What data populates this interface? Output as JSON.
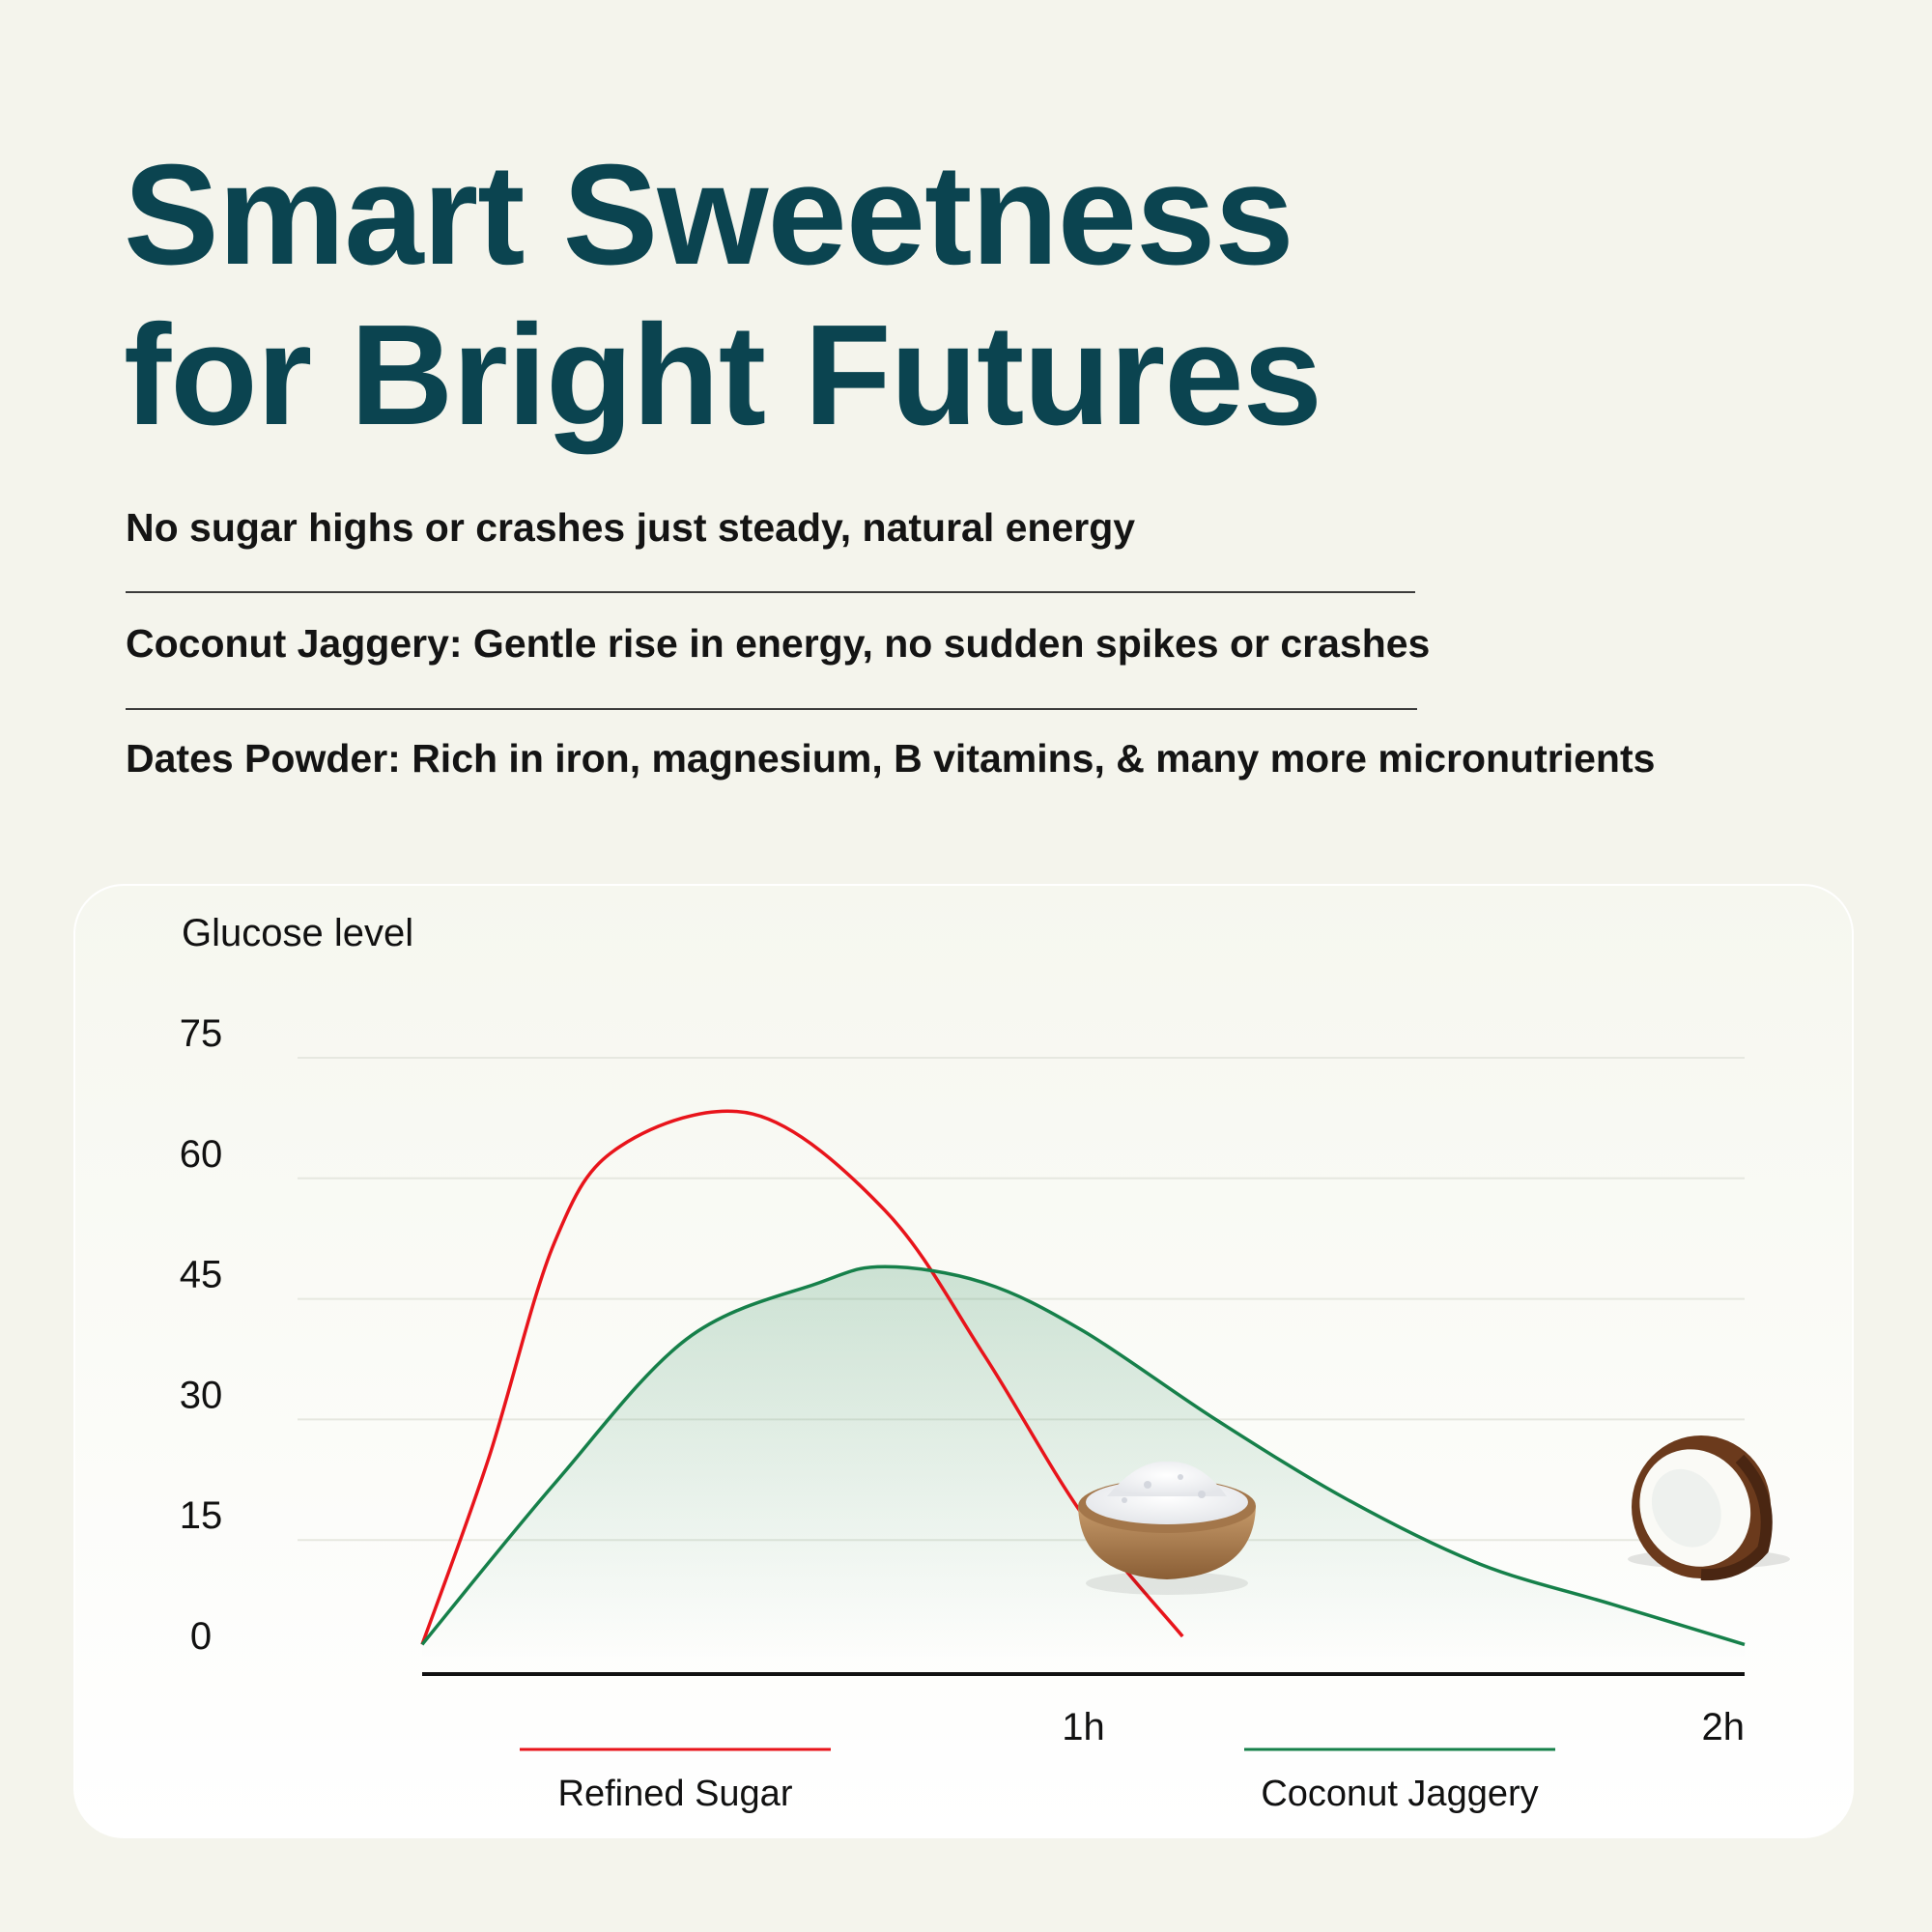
{
  "header": {
    "title_line1": "Smart Sweetness",
    "title_line2": "for Bright Futures"
  },
  "points": [
    "No sugar highs or crashes just steady, natural energy",
    "Coconut Jaggery: Gentle rise in energy, no sudden spikes or crashes",
    "Dates Powder: Rich in iron, magnesium, B vitamins, & many more micronutrients"
  ],
  "colors": {
    "title": "#0b4450",
    "refined_sugar": "#e8141b",
    "coconut_jaggery": "#16804a",
    "background": "#f4f4ec"
  },
  "icons": [
    "salt-bowl-icon",
    "coconut-icon"
  ],
  "chart_data": {
    "type": "line",
    "ylabel": "Glucose level",
    "xlabel": "",
    "y_ticks": [
      "75",
      "60",
      "45",
      "30",
      "15",
      "0"
    ],
    "ylim": [
      0,
      75
    ],
    "x_ticks": [
      {
        "label": "1h",
        "value": 1.0
      },
      {
        "label": "2h",
        "value": 2.0
      }
    ],
    "xlim": [
      0,
      2
    ],
    "grid": true,
    "legend_position": "bottom",
    "series": [
      {
        "name": "Refined Sugar",
        "color": "#e8141b",
        "fill": false,
        "points": [
          [
            0,
            2
          ],
          [
            0.1,
            25
          ],
          [
            0.2,
            52
          ],
          [
            0.3,
            64
          ],
          [
            0.5,
            68
          ],
          [
            0.7,
            56
          ],
          [
            0.85,
            38
          ],
          [
            1.0,
            18
          ],
          [
            1.15,
            3
          ]
        ]
      },
      {
        "name": "Coconut Jaggery",
        "color": "#16804a",
        "fill": true,
        "points": [
          [
            0,
            2
          ],
          [
            0.2,
            22
          ],
          [
            0.4,
            40
          ],
          [
            0.6,
            47
          ],
          [
            0.7,
            49
          ],
          [
            0.85,
            47
          ],
          [
            1.0,
            41
          ],
          [
            1.2,
            30
          ],
          [
            1.4,
            20
          ],
          [
            1.6,
            12
          ],
          [
            1.8,
            7
          ],
          [
            2.0,
            2
          ]
        ]
      }
    ]
  }
}
